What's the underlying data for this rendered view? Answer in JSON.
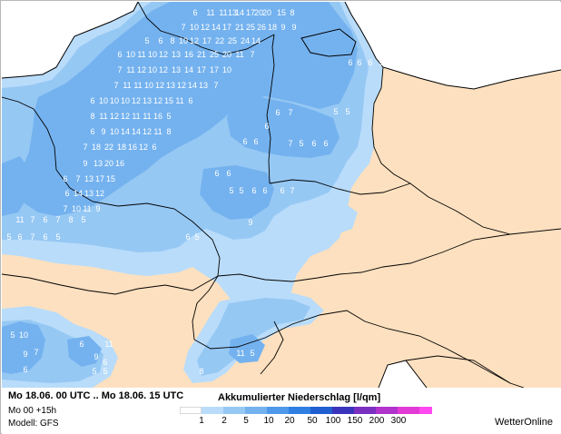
{
  "footer": {
    "period": "Mo 18.06. 00 UTC .. Mo 18.06. 15 UTC",
    "run": "Mo 00 +15h",
    "model": "Modell: GFS",
    "legend_title": "Akkumulierter Niederschlag [l/qm]",
    "brand": "WetterOnline"
  },
  "legend": {
    "ticks": [
      "1",
      "2",
      "5",
      "10",
      "20",
      "50",
      "100",
      "150",
      "200",
      "300"
    ],
    "colors": [
      "#ffffff",
      "#b9dcfa",
      "#96c8f4",
      "#74b2ef",
      "#4e99ea",
      "#2f7fe3",
      "#1f5fd2",
      "#3a34bc",
      "#7a2fc1",
      "#b033cc",
      "#e23ad4",
      "#ff48f0"
    ]
  },
  "map": {
    "land_color": "#fde0bf",
    "sea_color": "#ffffff",
    "precip_light": "#b9dcfa",
    "precip_mid": "#96c8f4",
    "precip_heavy": "#74b2ef",
    "values": [
      "6",
      "11",
      "11",
      "13",
      "14",
      "17",
      "20",
      "20",
      "15",
      "8",
      "7",
      "10",
      "12",
      "14",
      "17",
      "21",
      "25",
      "26",
      "18",
      "9",
      "9",
      "5",
      "6",
      "8",
      "10",
      "12",
      "17",
      "22",
      "25",
      "24",
      "14",
      "6",
      "10",
      "11",
      "10",
      "12",
      "13",
      "16",
      "21",
      "25",
      "20",
      "11",
      "7",
      "7",
      "11",
      "12",
      "10",
      "12",
      "13",
      "14",
      "17",
      "17",
      "10",
      "7",
      "11",
      "11",
      "10",
      "12",
      "13",
      "12",
      "14",
      "13",
      "7",
      "6",
      "10",
      "10",
      "10",
      "12",
      "13",
      "12",
      "15",
      "11",
      "6",
      "8",
      "11",
      "12",
      "12",
      "11",
      "11",
      "16",
      "5",
      "6",
      "9",
      "10",
      "14",
      "14",
      "12",
      "11",
      "8",
      "7",
      "18",
      "22",
      "18",
      "16",
      "12",
      "6",
      "9",
      "13",
      "20",
      "16",
      "6",
      "7",
      "13",
      "17",
      "15",
      "6",
      "14",
      "13",
      "12",
      "7",
      "10",
      "11",
      "9",
      "11",
      "7",
      "6",
      "7",
      "8",
      "5",
      "5",
      "6",
      "7",
      "6",
      "5",
      "6",
      "6",
      "5",
      "6",
      "6",
      "6",
      "7",
      "5",
      "6",
      "6",
      "7",
      "5",
      "6",
      "6",
      "6",
      "5",
      "9",
      "6",
      "5",
      "6",
      "7",
      "5",
      "6",
      "6",
      "6",
      "5",
      "6",
      "5",
      "10",
      "9",
      "6",
      "7",
      "6",
      "11",
      "11",
      "5",
      "8",
      "9",
      "6",
      "5",
      "5"
    ]
  }
}
